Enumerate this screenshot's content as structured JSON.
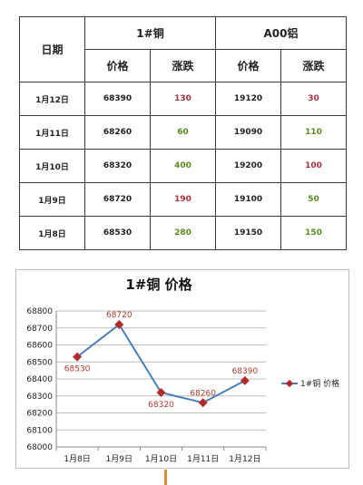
{
  "table": {
    "date_header": "日期",
    "copper_header": "1#铜",
    "aluminum_header": "A00铝",
    "sub_headers": [
      "价格",
      "涨跌",
      "价格",
      "涨跌"
    ],
    "colors": {
      "up": "#a8323e",
      "up_green": "#5a8a1f"
    },
    "rows": [
      {
        "date": "1月12日",
        "cu_price": "68390",
        "cu_change": "130",
        "cu_change_color": "#a8323e",
        "al_price": "19120",
        "al_change": "30",
        "al_change_color": "#a8323e"
      },
      {
        "date": "1月11日",
        "cu_price": "68260",
        "cu_change": "60",
        "cu_change_color": "#5a8a1f",
        "al_price": "19090",
        "al_change": "110",
        "al_change_color": "#5a8a1f"
      },
      {
        "date": "1月10日",
        "cu_price": "68320",
        "cu_change": "400",
        "cu_change_color": "#5a8a1f",
        "al_price": "19200",
        "al_change": "100",
        "al_change_color": "#a8323e"
      },
      {
        "date": "1月9日",
        "cu_price": "68720",
        "cu_change": "190",
        "cu_change_color": "#a8323e",
        "al_price": "19100",
        "al_change": "50",
        "al_change_color": "#5a8a1f"
      },
      {
        "date": "1月8日",
        "cu_price": "68530",
        "cu_change": "280",
        "cu_change_color": "#5a8a1f",
        "al_price": "19150",
        "al_change": "150",
        "al_change_color": "#5a8a1f"
      }
    ]
  },
  "chart_data": {
    "type": "line",
    "title": "1#铜 价格",
    "categories": [
      "1月8日",
      "1月9日",
      "1月10日",
      "1月11日",
      "1月12日"
    ],
    "series": [
      {
        "name": "1#铜 价格",
        "values": [
          68530,
          68720,
          68320,
          68260,
          68390
        ],
        "color": "#4a7ebb",
        "marker_color": "#b22a2a"
      }
    ],
    "ylim": [
      68000,
      68800
    ],
    "yticks": [
      68000,
      68100,
      68200,
      68300,
      68400,
      68500,
      68600,
      68700,
      68800
    ],
    "grid": true,
    "legend": "right",
    "data_label_color": "#b03a2e"
  }
}
